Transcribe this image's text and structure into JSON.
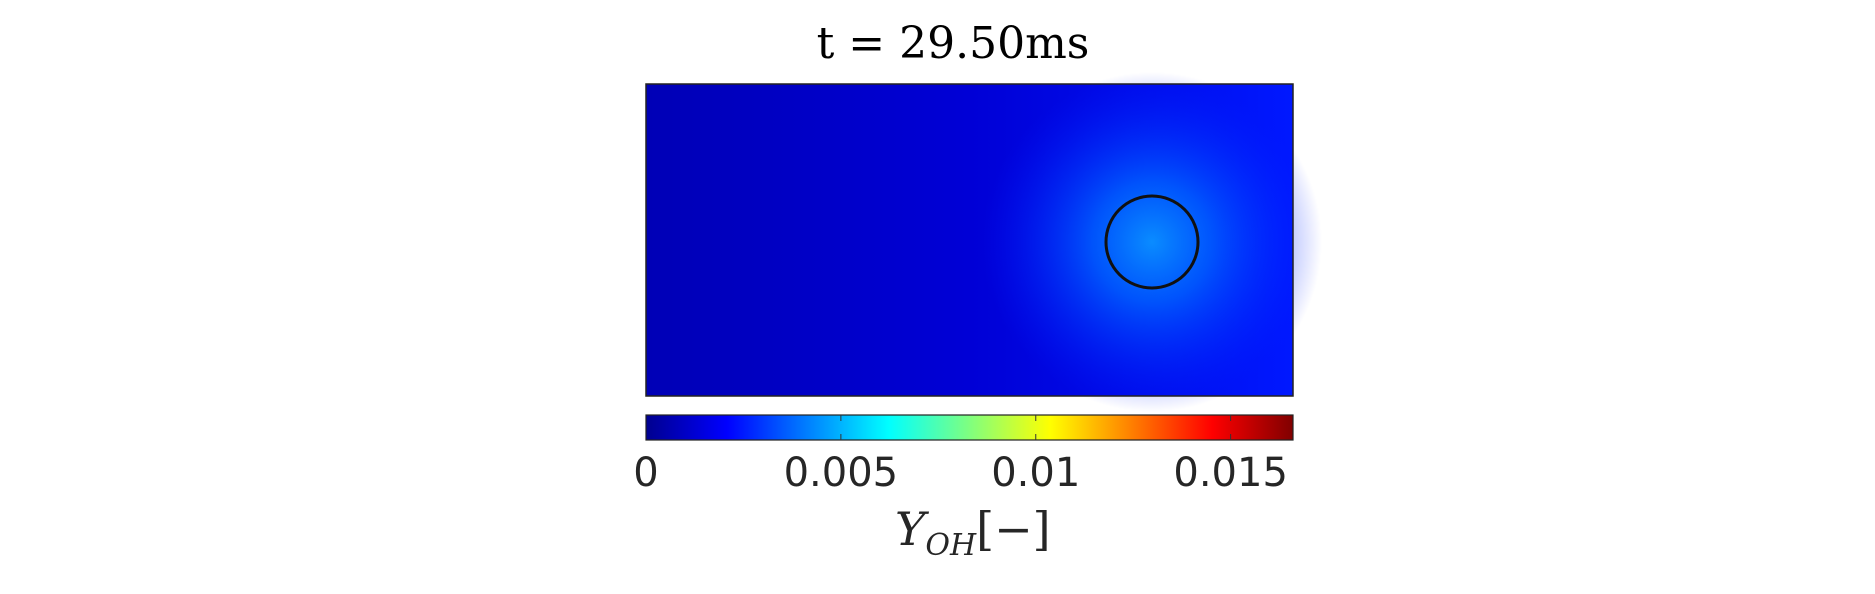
{
  "chart_data": {
    "type": "heatmap",
    "title": "t = 29.50ms",
    "field": "OH mass fraction",
    "colormap": "jet",
    "background_value": 0.0012,
    "peak_value": 0.0038,
    "overlay": "circle",
    "colorbar": {
      "range": [
        0,
        0.0166
      ],
      "ticks": [
        0,
        0.005,
        0.01,
        0.015
      ],
      "tick_labels": [
        "0",
        "0.005",
        "0.01",
        "0.015"
      ],
      "label_main": "Y",
      "label_sub": "OH",
      "label_unit": "[−]",
      "position": "bottom"
    }
  }
}
